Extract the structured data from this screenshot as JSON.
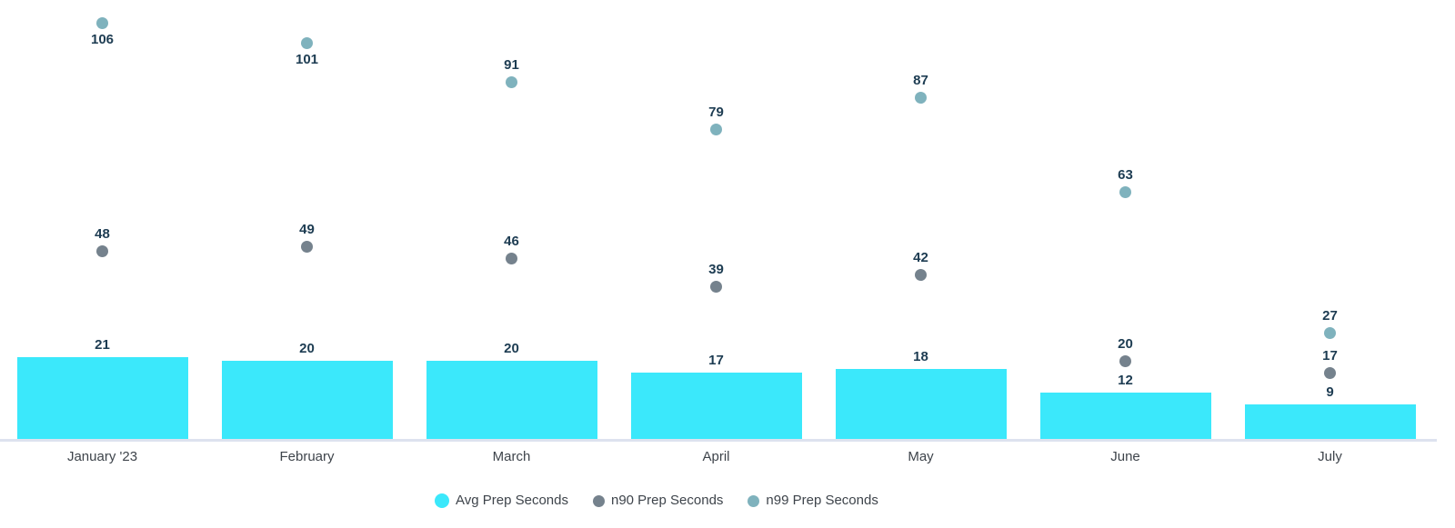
{
  "chart_data": {
    "type": "combo-bar-scatter",
    "title": "",
    "xlabel": "",
    "ylabel": "",
    "categories": [
      "January '23",
      "February",
      "March",
      "April",
      "May",
      "June",
      "July"
    ],
    "series": [
      {
        "name": "Avg Prep Seconds",
        "type": "bar",
        "color": "#3be8fb",
        "values": [
          21,
          20,
          20,
          17,
          18,
          12,
          9
        ]
      },
      {
        "name": "n90 Prep Seconds",
        "type": "scatter",
        "color": "#75828d",
        "values": [
          48,
          49,
          46,
          39,
          42,
          20,
          17
        ]
      },
      {
        "name": "n99 Prep Seconds",
        "type": "scatter",
        "color": "#7fb2bd",
        "values": [
          106,
          101,
          91,
          79,
          87,
          63,
          27
        ],
        "labels_below_point": [
          0,
          1
        ]
      }
    ],
    "ylim": [
      0,
      112
    ],
    "grid": false,
    "value_labels": true,
    "legend_position": "bottom",
    "colors": {
      "value_label_text": "#1d3c52",
      "axis_label_text": "#3e444b",
      "axis_line": "#dde2ef",
      "background": "#ffffff"
    }
  }
}
